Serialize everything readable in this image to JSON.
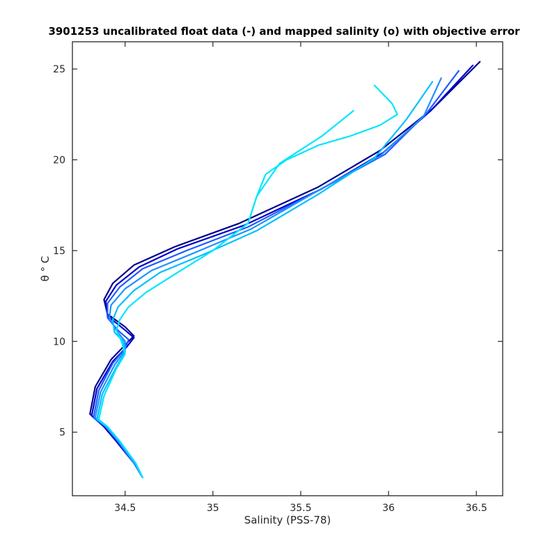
{
  "chart_data": {
    "type": "line",
    "title": "3901253 uncalibrated float data (-) and mapped salinity (o) with objective error",
    "xlabel": "Salinity (PSS-78)",
    "ylabel": "θ ° C",
    "xlim": [
      34.2,
      36.65
    ],
    "ylim": [
      1.5,
      26.5
    ],
    "xticks": [
      34.5,
      35,
      35.5,
      36,
      36.5
    ],
    "yticks": [
      5,
      10,
      15,
      20,
      25
    ],
    "xtick_labels": [
      "34.5",
      "35",
      "35.5",
      "36",
      "36.5"
    ],
    "ytick_labels": [
      "5",
      "10",
      "15",
      "20",
      "25"
    ],
    "grid": false,
    "colormap": [
      "#00008b",
      "#0000cd",
      "#1e5bff",
      "#1e90ff",
      "#00bfff",
      "#00e5ff"
    ],
    "series": [
      {
        "color": "#00008b",
        "x": [
          34.6,
          34.55,
          34.45,
          34.38,
          34.3,
          34.33,
          34.42,
          34.5,
          34.55,
          34.5,
          34.4,
          34.38,
          34.43,
          34.55,
          34.78,
          35.15,
          35.6,
          35.95,
          36.25,
          36.52
        ],
        "y": [
          2.5,
          3.3,
          4.5,
          5.3,
          6.0,
          7.5,
          9.0,
          9.8,
          10.3,
          10.8,
          11.5,
          12.3,
          13.2,
          14.2,
          15.2,
          16.5,
          18.5,
          20.5,
          22.8,
          25.4
        ]
      },
      {
        "color": "#0000cd",
        "x": [
          34.6,
          34.55,
          34.45,
          34.38,
          34.31,
          34.34,
          34.43,
          34.51,
          34.55,
          34.49,
          34.4,
          34.39,
          34.45,
          34.58,
          34.8,
          35.18,
          35.62,
          35.97,
          36.24,
          36.48
        ],
        "y": [
          2.5,
          3.3,
          4.5,
          5.3,
          5.9,
          7.4,
          8.9,
          9.7,
          10.2,
          10.7,
          11.4,
          12.2,
          13.1,
          14.1,
          15.1,
          16.4,
          18.4,
          20.4,
          22.7,
          25.2
        ]
      },
      {
        "color": "#1e5bff",
        "x": [
          34.6,
          34.55,
          34.46,
          34.39,
          34.32,
          34.35,
          34.43,
          34.5,
          34.52,
          34.46,
          34.4,
          34.4,
          34.47,
          34.6,
          34.85,
          35.2,
          35.6,
          35.98,
          36.22,
          36.4
        ],
        "y": [
          2.5,
          3.3,
          4.5,
          5.3,
          5.8,
          7.3,
          8.8,
          9.6,
          10.1,
          10.6,
          11.3,
          12.1,
          13.0,
          14.0,
          15.0,
          16.3,
          18.3,
          20.3,
          22.6,
          24.9
        ]
      },
      {
        "color": "#1e90ff",
        "x": [
          34.6,
          34.55,
          34.46,
          34.39,
          34.33,
          34.36,
          34.44,
          34.5,
          34.5,
          34.45,
          34.41,
          34.42,
          34.5,
          34.65,
          34.9,
          35.22,
          35.58,
          35.95,
          36.2,
          36.3
        ],
        "y": [
          2.5,
          3.3,
          4.5,
          5.3,
          5.8,
          7.2,
          8.7,
          9.5,
          10.0,
          10.6,
          11.3,
          12.0,
          12.9,
          13.9,
          14.9,
          16.2,
          18.2,
          20.2,
          22.4,
          24.5
        ]
      },
      {
        "color": "#00bfff",
        "x": [
          34.6,
          34.56,
          34.47,
          34.4,
          34.34,
          34.37,
          34.45,
          34.5,
          34.49,
          34.44,
          34.43,
          34.46,
          34.55,
          34.7,
          34.95,
          35.25,
          35.6,
          35.92,
          36.1,
          36.25
        ],
        "y": [
          2.5,
          3.3,
          4.5,
          5.3,
          5.7,
          7.1,
          8.6,
          9.4,
          10.0,
          10.5,
          11.2,
          11.9,
          12.8,
          13.8,
          14.8,
          16.1,
          18.1,
          20.1,
          22.2,
          24.3
        ]
      },
      {
        "color": "#00e5ff",
        "x": [
          34.6,
          34.56,
          34.47,
          34.4,
          34.35,
          34.38,
          34.45,
          34.5,
          34.48,
          34.45,
          34.47,
          34.52,
          34.62,
          34.8,
          35.0,
          35.2,
          35.25,
          35.38,
          35.62,
          35.8
        ],
        "y": [
          2.5,
          3.3,
          4.5,
          5.3,
          5.7,
          7.0,
          8.5,
          9.3,
          10.0,
          10.6,
          11.2,
          11.9,
          12.7,
          13.8,
          15.0,
          16.5,
          18.0,
          19.8,
          21.3,
          22.7
        ]
      },
      {
        "color": "#00e5ff",
        "x": [
          35.0,
          35.2,
          35.25,
          35.3,
          35.42,
          35.6,
          35.78,
          35.95,
          36.05,
          36.02,
          35.95,
          35.92
        ],
        "y": [
          15.0,
          16.5,
          18.0,
          19.2,
          20.0,
          20.8,
          21.3,
          21.9,
          22.5,
          23.1,
          23.8,
          24.1
        ]
      }
    ]
  }
}
